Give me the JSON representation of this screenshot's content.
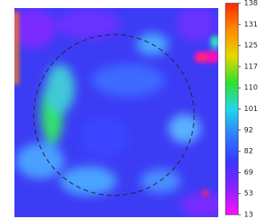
{
  "chart_data": {
    "type": "heatmap",
    "colorbar": {
      "ticks": [
        138,
        131,
        125,
        117,
        110,
        101,
        92,
        82,
        69,
        53,
        13
      ],
      "colors": [
        "#ff2a00",
        "#ff8a00",
        "#e8d800",
        "#2ee02e",
        "#22d8e8",
        "#2f7cff",
        "#3a36ff",
        "#8a22ff",
        "#ff10ff"
      ]
    }
  }
}
